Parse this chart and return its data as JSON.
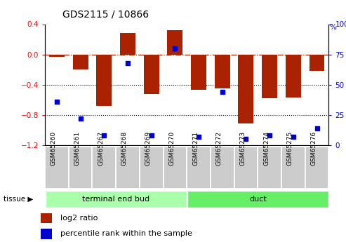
{
  "title": "GDS2115 / 10866",
  "samples": [
    "GSM65260",
    "GSM65261",
    "GSM65267",
    "GSM65268",
    "GSM65269",
    "GSM65270",
    "GSM65271",
    "GSM65272",
    "GSM65273",
    "GSM65274",
    "GSM65275",
    "GSM65276"
  ],
  "log2_ratio": [
    -0.03,
    -0.2,
    -0.68,
    0.28,
    -0.52,
    0.32,
    -0.47,
    -0.45,
    -0.91,
    -0.58,
    -0.57,
    -0.22
  ],
  "percentile_rank": [
    36,
    22,
    8,
    68,
    8,
    80,
    7,
    44,
    5,
    8,
    7,
    14
  ],
  "groups": [
    {
      "label": "terminal end bud",
      "start": 0,
      "end": 6,
      "color": "#aaffaa"
    },
    {
      "label": "duct",
      "start": 6,
      "end": 12,
      "color": "#66ee66"
    }
  ],
  "bar_color": "#aa2200",
  "dot_color": "#0000cc",
  "ylim_left": [
    -1.2,
    0.4
  ],
  "ylim_right": [
    0,
    100
  ],
  "yticks_left": [
    0.4,
    0.0,
    -0.4,
    -0.8,
    -1.2
  ],
  "yticks_right": [
    100,
    75,
    50,
    25,
    0
  ],
  "hline_y": 0.0,
  "dotted_lines": [
    -0.4,
    -0.8
  ],
  "tick_bg_color": "#cccccc",
  "border_color": "#999999",
  "legend_red_label": "log2 ratio",
  "legend_blue_label": "percentile rank within the sample",
  "tissue_label": "tissue",
  "pct_symbol": "%"
}
